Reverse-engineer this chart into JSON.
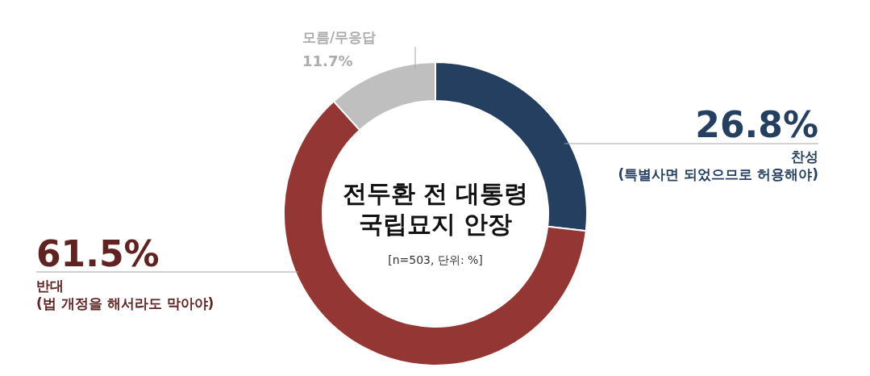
{
  "chart_data": {
    "type": "donut",
    "title": "전두환 전 대통령\n국립묘지 안장",
    "subtitle": "[n=503, 단위: %]",
    "categories": [
      "찬성\n(특별사면 되었으므로 허용해야)",
      "반대\n(법 개정을 해서라도 막아야)",
      "모름/무응답"
    ],
    "values": [
      26.8,
      61.5,
      11.7
    ],
    "colors": [
      "#253f61",
      "#943634",
      "#bfbfbf"
    ],
    "value_labels": [
      "26.8%",
      "61.5%",
      "11.7%"
    ]
  }
}
